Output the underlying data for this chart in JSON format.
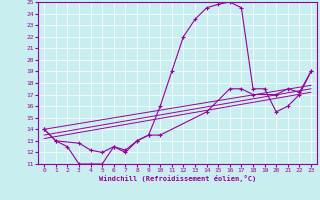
{
  "xlabel": "Windchill (Refroidissement éolien,°C)",
  "bg_color": "#c8eef0",
  "line_color": "#990099",
  "xlim": [
    -0.5,
    23.5
  ],
  "ylim": [
    11,
    25
  ],
  "xticks": [
    0,
    1,
    2,
    3,
    4,
    5,
    6,
    7,
    8,
    9,
    10,
    11,
    12,
    13,
    14,
    15,
    16,
    17,
    18,
    19,
    20,
    21,
    22,
    23
  ],
  "yticks": [
    11,
    12,
    13,
    14,
    15,
    16,
    17,
    18,
    19,
    20,
    21,
    22,
    23,
    24,
    25
  ],
  "curve1_x": [
    0,
    1,
    2,
    3,
    4,
    5,
    6,
    7,
    8,
    9,
    10,
    11,
    12,
    13,
    14,
    15,
    16,
    17,
    18,
    19,
    20,
    21,
    22,
    23
  ],
  "curve1_y": [
    14.0,
    13.0,
    12.5,
    11.0,
    11.0,
    11.0,
    12.5,
    12.0,
    13.0,
    13.5,
    16.0,
    19.0,
    22.0,
    23.5,
    24.5,
    24.8,
    25.0,
    24.5,
    17.5,
    17.5,
    15.5,
    16.0,
    17.0,
    19.0
  ],
  "curve2_x": [
    0,
    1,
    3,
    4,
    5,
    6,
    7,
    8,
    9,
    10,
    14,
    16,
    17,
    18,
    20,
    21,
    22,
    23
  ],
  "curve2_y": [
    14.0,
    13.0,
    12.8,
    12.2,
    12.0,
    12.5,
    12.2,
    13.0,
    13.5,
    13.5,
    15.5,
    17.5,
    17.5,
    17.0,
    17.0,
    17.5,
    17.2,
    19.0
  ],
  "curve3_x": [
    0,
    23
  ],
  "curve3_y": [
    13.2,
    17.2
  ],
  "curve4_x": [
    0,
    23
  ],
  "curve4_y": [
    13.5,
    17.5
  ],
  "curve5_x": [
    0,
    23
  ],
  "curve5_y": [
    14.0,
    17.8
  ]
}
